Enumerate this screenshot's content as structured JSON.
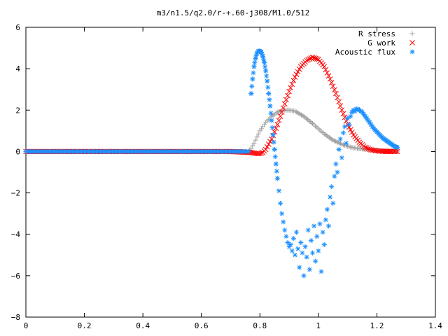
{
  "chart_data": {
    "type": "scatter",
    "title": "m3/n1.5/q2.0/r-+.60-j308/M1.0/512",
    "xlim": [
      0,
      1.4
    ],
    "ylim": [
      -8,
      6
    ],
    "x_ticks": [
      "0",
      "0.2",
      "0.4",
      "0.6",
      "0.8",
      "1",
      "1.2",
      "1.4"
    ],
    "y_ticks": [
      "6",
      "4",
      "2",
      "0",
      "−2",
      "−4",
      "−6",
      "−8"
    ],
    "x_tick_values": [
      0,
      0.2,
      0.4,
      0.6,
      0.8,
      1.0,
      1.2,
      1.4
    ],
    "y_tick_values": [
      6,
      4,
      2,
      0,
      -2,
      -4,
      -6,
      -8
    ],
    "legend_position": "top-right",
    "grid": false,
    "series": [
      {
        "name": "R stress",
        "marker": "plus",
        "color": "#a0a0a0",
        "x": [
          0.0,
          0.1,
          0.2,
          0.3,
          0.4,
          0.5,
          0.6,
          0.7,
          0.76,
          0.77,
          0.78,
          0.79,
          0.8,
          0.82,
          0.84,
          0.86,
          0.88,
          0.9,
          0.92,
          0.95,
          0.98,
          1.0,
          1.02,
          1.05,
          1.08,
          1.1,
          1.12,
          1.15,
          1.18,
          1.2,
          1.22,
          1.25,
          1.27
        ],
        "y": [
          0,
          0,
          0,
          0,
          0,
          0,
          0,
          0,
          0,
          0.15,
          0.4,
          0.7,
          1.0,
          1.4,
          1.7,
          1.9,
          2.0,
          2.0,
          1.95,
          1.7,
          1.35,
          1.1,
          0.85,
          0.55,
          0.35,
          0.25,
          0.18,
          0.12,
          0.08,
          0.05,
          0.03,
          0.02,
          0.01
        ]
      },
      {
        "name": "G work",
        "marker": "cross",
        "color": "#ff0000",
        "x": [
          0.0,
          0.1,
          0.2,
          0.3,
          0.4,
          0.5,
          0.6,
          0.7,
          0.77,
          0.79,
          0.8,
          0.81,
          0.82,
          0.84,
          0.86,
          0.88,
          0.9,
          0.92,
          0.94,
          0.96,
          0.98,
          1.0,
          1.02,
          1.04,
          1.06,
          1.08,
          1.1,
          1.12,
          1.14,
          1.16,
          1.18,
          1.2,
          1.22,
          1.25,
          1.27
        ],
        "y": [
          0,
          0,
          0,
          0,
          0,
          0,
          0,
          0,
          -0.05,
          -0.1,
          -0.1,
          -0.05,
          0.1,
          0.6,
          1.3,
          2.1,
          2.9,
          3.6,
          4.1,
          4.4,
          4.55,
          4.45,
          4.1,
          3.5,
          2.8,
          2.0,
          1.3,
          0.8,
          0.45,
          0.2,
          0.08,
          0.03,
          0.01,
          0,
          0
        ]
      },
      {
        "name": "Acoustic flux",
        "marker": "star",
        "color": "#1e90ff",
        "x": [
          0.0,
          0.1,
          0.2,
          0.3,
          0.4,
          0.5,
          0.6,
          0.7,
          0.76,
          0.77,
          0.775,
          0.78,
          0.785,
          0.79,
          0.795,
          0.8,
          0.805,
          0.81,
          0.815,
          0.82,
          0.825,
          0.83,
          0.835,
          0.84,
          0.845,
          0.85,
          0.855,
          0.86,
          0.865,
          0.87,
          0.875,
          0.88,
          0.885,
          0.89,
          0.895,
          0.9,
          0.905,
          0.91,
          0.915,
          0.92,
          0.925,
          0.93,
          0.935,
          0.94,
          0.945,
          0.95,
          0.955,
          0.96,
          0.965,
          0.97,
          0.975,
          0.98,
          0.985,
          0.99,
          0.995,
          1.0,
          1.005,
          1.01,
          1.015,
          1.02,
          1.025,
          1.03,
          1.035,
          1.04,
          1.045,
          1.05,
          1.055,
          1.06,
          1.065,
          1.07,
          1.075,
          1.08,
          1.085,
          1.09,
          1.095,
          1.1,
          1.105,
          1.11,
          1.115,
          1.12,
          1.125,
          1.13,
          1.135,
          1.14,
          1.145,
          1.15,
          1.155,
          1.16,
          1.165,
          1.17,
          1.175,
          1.18,
          1.185,
          1.19,
          1.2,
          1.21,
          1.22,
          1.23,
          1.24,
          1.25,
          1.26,
          1.27
        ],
        "y": [
          0,
          0,
          0,
          0,
          0,
          0,
          0,
          0,
          1.5,
          2.8,
          3.5,
          4.1,
          4.5,
          4.75,
          4.85,
          4.85,
          4.8,
          4.6,
          4.3,
          3.9,
          3.4,
          2.8,
          2.2,
          1.5,
          0.8,
          0.1,
          -0.6,
          -1.3,
          -1.9,
          -2.5,
          -3.0,
          -3.4,
          -3.8,
          -4.1,
          -4.4,
          -4.6,
          -4.5,
          -4.8,
          -4.2,
          -5.0,
          -3.9,
          -4.7,
          -5.6,
          -4.4,
          -4.9,
          -6.0,
          -4.6,
          -5.1,
          -3.8,
          -5.7,
          -4.3,
          -4.9,
          -3.6,
          -5.3,
          -4.1,
          -4.8,
          -3.5,
          -5.8,
          -3.9,
          -4.5,
          -3.3,
          -2.8,
          -3.6,
          -2.2,
          -1.7,
          -2.5,
          -1.2,
          -0.6,
          -1.0,
          0.1,
          0.6,
          -0.3,
          0.9,
          1.2,
          0.4,
          1.6,
          1.3,
          1.7,
          1.9,
          2.0,
          1.95,
          2.05,
          2.05,
          2.0,
          1.95,
          1.9,
          1.8,
          1.7,
          1.6,
          1.5,
          1.4,
          1.3,
          1.2,
          1.1,
          0.95,
          0.8,
          0.65,
          0.55,
          0.45,
          0.35,
          0.25,
          0.2
        ]
      }
    ]
  }
}
